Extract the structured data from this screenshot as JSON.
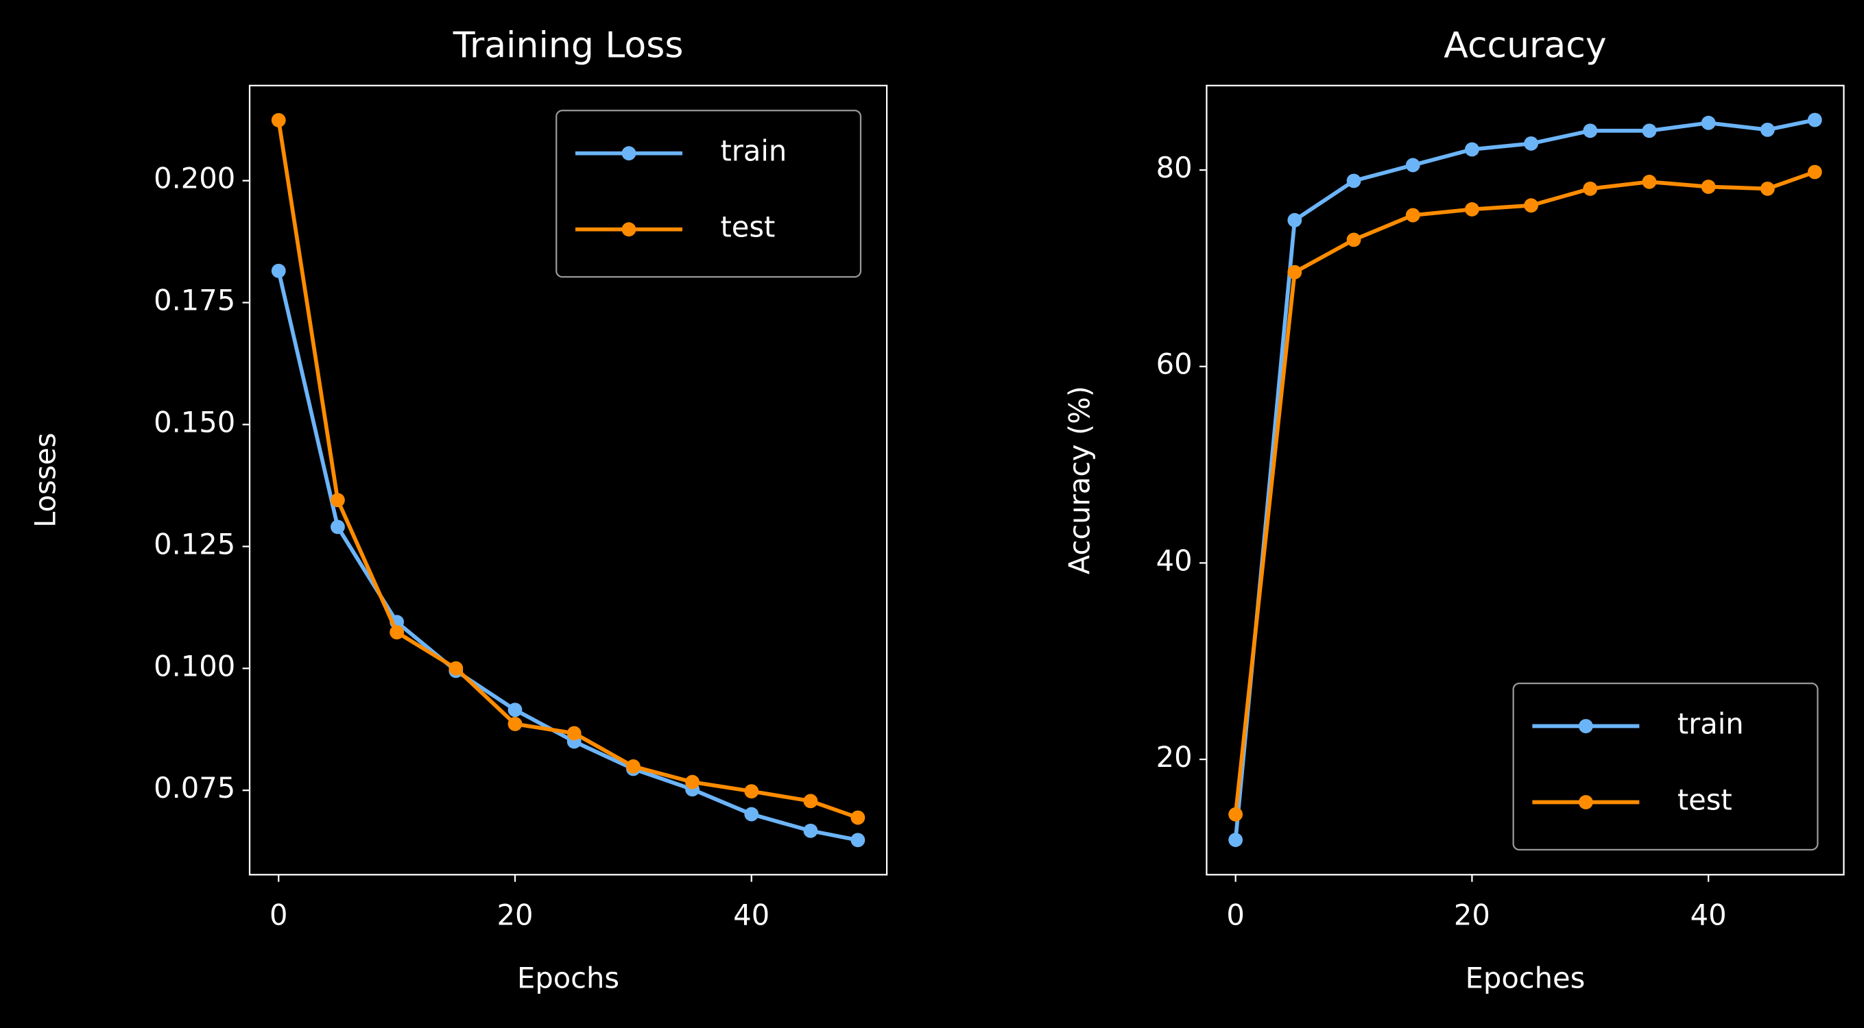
{
  "chart_data": [
    {
      "type": "line",
      "title": "Training Loss",
      "xlabel": "Epochs",
      "ylabel": "Losses",
      "x": [
        0,
        5,
        10,
        15,
        20,
        25,
        30,
        35,
        40,
        45,
        49
      ],
      "series": [
        {
          "name": "train",
          "color": "#6cb4f8",
          "values": [
            0.1815,
            0.129,
            0.1095,
            0.0995,
            0.0915,
            0.085,
            0.0794,
            0.0752,
            0.0701,
            0.0667,
            0.0648
          ]
        },
        {
          "name": "test",
          "color": "#ff8c00",
          "values": [
            0.2124,
            0.1345,
            0.1074,
            0.1,
            0.0886,
            0.0867,
            0.0799,
            0.0767,
            0.0748,
            0.0728,
            0.0694
          ]
        }
      ],
      "xlim": [
        -2.45,
        51.45
      ],
      "xticks": [
        0,
        20,
        40
      ],
      "ylim": [
        0.0577,
        0.2195
      ],
      "yticks": [
        {
          "value": 0.075,
          "label": "0.075"
        },
        {
          "value": 0.1,
          "label": "0.100"
        },
        {
          "value": 0.125,
          "label": "0.125"
        },
        {
          "value": 0.15,
          "label": "0.150"
        },
        {
          "value": 0.175,
          "label": "0.175"
        },
        {
          "value": 0.2,
          "label": "0.200"
        }
      ],
      "legend": "upper right"
    },
    {
      "type": "line",
      "title": "Accuracy",
      "xlabel": "Epoches",
      "ylabel": "Accuracy (%)",
      "x": [
        0,
        5,
        10,
        15,
        20,
        25,
        30,
        35,
        40,
        45,
        49
      ],
      "series": [
        {
          "name": "train",
          "color": "#6cb4f8",
          "values": [
            11.8,
            74.9,
            78.9,
            80.5,
            82.1,
            82.7,
            84.0,
            84.0,
            84.8,
            84.1,
            85.1
          ]
        },
        {
          "name": "test",
          "color": "#ff8c00",
          "values": [
            14.4,
            69.6,
            72.9,
            75.4,
            76.0,
            76.4,
            78.1,
            78.8,
            78.3,
            78.1,
            79.8
          ]
        }
      ],
      "xlim": [
        -2.45,
        51.45
      ],
      "xticks": [
        0,
        20,
        40
      ],
      "ylim": [
        8.26,
        88.6
      ],
      "yticks": [
        20,
        40,
        60,
        80
      ],
      "legend": "lower right"
    }
  ]
}
